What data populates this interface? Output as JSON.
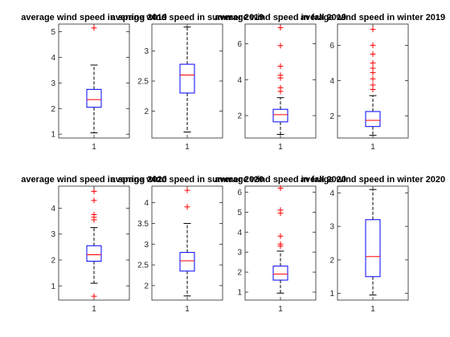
{
  "chart_data": [
    {
      "type": "box",
      "title": "average wind speed in spring 2019",
      "xlabel": "",
      "ylabel": "",
      "x_tick": "1",
      "ylim": [
        0.85,
        5.3
      ],
      "yticks": [
        1,
        2,
        3,
        4,
        5
      ],
      "box": {
        "min": 1.05,
        "q1": 2.05,
        "median": 2.35,
        "q3": 2.75,
        "max": 3.7,
        "outliers": [
          5.15
        ]
      }
    },
    {
      "type": "box",
      "title": "average wind speed in summer 2019",
      "xlabel": "",
      "ylabel": "",
      "x_tick": "1",
      "ylim": [
        1.55,
        3.45
      ],
      "yticks": [
        2,
        2.5,
        3
      ],
      "box": {
        "min": 1.65,
        "q1": 2.3,
        "median": 2.6,
        "q3": 2.78,
        "max": 3.4,
        "outliers": []
      }
    },
    {
      "type": "box",
      "title": "average wind speed in fall 2019",
      "xlabel": "",
      "ylabel": "",
      "x_tick": "1",
      "ylim": [
        0.75,
        7.1
      ],
      "yticks": [
        2,
        4,
        6
      ],
      "box": {
        "min": 0.95,
        "q1": 1.65,
        "median": 2.05,
        "q3": 2.35,
        "max": 3.0,
        "outliers": [
          3.35,
          3.55,
          4.1,
          4.25,
          4.75,
          5.9,
          6.9
        ]
      }
    },
    {
      "type": "box",
      "title": "average wind speed in winter 2019",
      "xlabel": "",
      "ylabel": "",
      "x_tick": "1",
      "ylim": [
        0.75,
        7.2
      ],
      "yticks": [
        2,
        4,
        6
      ],
      "box": {
        "min": 0.9,
        "q1": 1.4,
        "median": 1.75,
        "q3": 2.25,
        "max": 3.15,
        "outliers": [
          3.5,
          3.75,
          4.1,
          4.45,
          4.7,
          5.0,
          5.5,
          6.0,
          6.9
        ]
      }
    },
    {
      "type": "box",
      "title": "average wind speed in spring 2020",
      "xlabel": "",
      "ylabel": "",
      "x_tick": "1",
      "ylim": [
        0.45,
        4.85
      ],
      "yticks": [
        1,
        2,
        3,
        4
      ],
      "box": {
        "min": 1.1,
        "q1": 1.95,
        "median": 2.2,
        "q3": 2.55,
        "max": 3.25,
        "outliers": [
          0.6,
          3.55,
          3.65,
          3.75,
          4.3,
          4.65
        ]
      }
    },
    {
      "type": "box",
      "title": "average wind speed in summer 2020",
      "xlabel": "",
      "ylabel": "",
      "x_tick": "1",
      "ylim": [
        1.65,
        4.4
      ],
      "yticks": [
        2,
        2.5,
        3,
        3.5,
        4
      ],
      "box": {
        "min": 1.75,
        "q1": 2.35,
        "median": 2.6,
        "q3": 2.8,
        "max": 3.5,
        "outliers": [
          3.9,
          4.3
        ]
      }
    },
    {
      "type": "box",
      "title": "average wind speed in fall 2020",
      "xlabel": "",
      "ylabel": "",
      "x_tick": "1",
      "ylim": [
        0.6,
        6.3
      ],
      "yticks": [
        1,
        2,
        3,
        4,
        5,
        6
      ],
      "box": {
        "min": 0.95,
        "q1": 1.6,
        "median": 1.9,
        "q3": 2.3,
        "max": 3.05,
        "outliers": [
          3.3,
          3.4,
          3.8,
          4.95,
          5.1,
          6.2
        ]
      }
    },
    {
      "type": "box",
      "title": "average wind speed in winter 2020",
      "xlabel": "",
      "ylabel": "",
      "x_tick": "1",
      "ylim": [
        0.8,
        4.2
      ],
      "yticks": [
        1,
        2,
        3,
        4
      ],
      "box": {
        "min": 0.95,
        "q1": 1.5,
        "median": 2.1,
        "q3": 3.2,
        "max": 4.1,
        "outliers": []
      }
    }
  ],
  "style": {
    "box_color": "#0000ff",
    "median_color": "#ff0000",
    "outlier_color": "#ff0000",
    "whisker_color": "#000000",
    "axes_color": "#262626",
    "grid": false,
    "outlier_marker": "plus"
  }
}
